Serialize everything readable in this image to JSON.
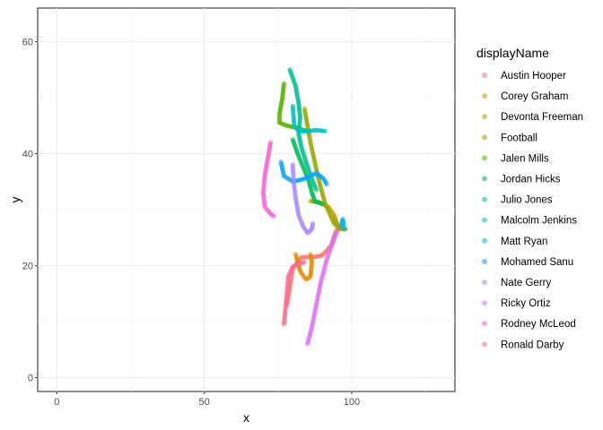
{
  "chart_data": {
    "type": "scatter",
    "xlabel": "x",
    "ylabel": "y",
    "xlim": [
      -6.5,
      135
    ],
    "ylim": [
      -2.5,
      66
    ],
    "x_ticks": [
      0,
      50,
      100
    ],
    "y_ticks": [
      0,
      20,
      40,
      60
    ],
    "x_tick_labels": [
      "0",
      "50",
      "100"
    ],
    "y_tick_labels": [
      "0",
      "20",
      "40",
      "60"
    ],
    "grid": true,
    "legend": {
      "title": "displayName",
      "position": "right"
    },
    "marker": {
      "shape": "circle",
      "alpha": 0.55
    },
    "series": [
      {
        "name": "Austin Hooper",
        "color": "#F8766D",
        "path": [
          [
            78,
            13
          ],
          [
            79,
            16
          ],
          [
            80,
            19.5
          ],
          [
            83,
            21.5
          ],
          [
            87,
            21.5
          ],
          [
            90,
            21.8
          ],
          [
            93,
            23.5
          ],
          [
            94.5,
            26
          ],
          [
            96,
            27
          ]
        ]
      },
      {
        "name": "Corey Graham",
        "color": "#E38900",
        "path": [
          [
            81,
            22
          ],
          [
            82.5,
            19
          ],
          [
            84.5,
            17.5
          ],
          [
            86,
            18
          ],
          [
            86.5,
            20.5
          ],
          [
            86,
            22
          ]
        ]
      },
      {
        "name": "Devonta Freeman",
        "color": "#C49A00",
        "path": [
          [
            86,
            31.5
          ],
          [
            89,
            31.3
          ],
          [
            92,
            30.5
          ],
          [
            94,
            29
          ],
          [
            95,
            27.5
          ],
          [
            96.5,
            26.5
          ],
          [
            98,
            26.5
          ]
        ]
      },
      {
        "name": "Football",
        "color": "#99A800",
        "path": [
          [
            84,
            48
          ],
          [
            86,
            42
          ],
          [
            88.5,
            36
          ],
          [
            91,
            31
          ],
          [
            94,
            27.5
          ],
          [
            96,
            26.5
          ]
        ]
      },
      {
        "name": "Jalen Mills",
        "color": "#53B400",
        "path": [
          [
            77,
            52.5
          ],
          [
            76.5,
            50
          ],
          [
            75.5,
            47
          ],
          [
            75.5,
            45.5
          ],
          [
            78,
            45
          ],
          [
            82,
            44.5
          ],
          [
            85,
            44
          ]
        ]
      },
      {
        "name": "Jordan Hicks",
        "color": "#00BC56",
        "path": [
          [
            80,
            42.5
          ],
          [
            82,
            39.5
          ],
          [
            84,
            37
          ],
          [
            85.5,
            35
          ],
          [
            86.5,
            33
          ],
          [
            87.5,
            31.5
          ],
          [
            90,
            31
          ]
        ]
      },
      {
        "name": "Julio Jones",
        "color": "#00C094",
        "path": [
          [
            79,
            55
          ],
          [
            81,
            52
          ],
          [
            82,
            49
          ],
          [
            82.5,
            46.5
          ],
          [
            82,
            43.5
          ],
          [
            83,
            41
          ],
          [
            84.5,
            38.5
          ],
          [
            86.5,
            35.5
          ],
          [
            88,
            33.5
          ]
        ]
      },
      {
        "name": "Malcolm Jenkins",
        "color": "#00BFC4",
        "path": [
          [
            80,
            48.5
          ],
          [
            80.5,
            45
          ],
          [
            82,
            44
          ],
          [
            85,
            44
          ],
          [
            88,
            44.2
          ],
          [
            91,
            44
          ]
        ]
      },
      {
        "name": "Matt Ryan",
        "color": "#00B6EB",
        "path": [
          [
            96.5,
            27
          ],
          [
            96.7,
            27.8
          ],
          [
            97,
            28.3
          ],
          [
            97.2,
            27.4
          ],
          [
            97.5,
            26.5
          ]
        ]
      },
      {
        "name": "Mohamed Sanu",
        "color": "#06A4FF",
        "path": [
          [
            76,
            38.5
          ],
          [
            77,
            36
          ],
          [
            80,
            35
          ],
          [
            84,
            35.5
          ],
          [
            88,
            36.5
          ],
          [
            90.5,
            35.5
          ],
          [
            91.5,
            34.5
          ]
        ]
      },
      {
        "name": "Nate Gerry",
        "color": "#A58AFF",
        "path": [
          [
            80,
            38
          ],
          [
            80.3,
            35
          ],
          [
            81,
            32
          ],
          [
            82,
            29
          ],
          [
            83.5,
            27
          ],
          [
            85,
            25.8
          ],
          [
            86.5,
            26.5
          ],
          [
            86.8,
            27.5
          ]
        ]
      },
      {
        "name": "Ricky Ortiz",
        "color": "#DF70F8",
        "path": [
          [
            85,
            6
          ],
          [
            86.5,
            9
          ],
          [
            88,
            13
          ],
          [
            89.5,
            17
          ],
          [
            91.5,
            21
          ],
          [
            93.5,
            24
          ],
          [
            95,
            26
          ]
        ]
      },
      {
        "name": "Rodney McLeod",
        "color": "#FB61D7",
        "path": [
          [
            72.5,
            42
          ],
          [
            71.5,
            39
          ],
          [
            70.5,
            36
          ],
          [
            70,
            33
          ],
          [
            70.5,
            30.5
          ],
          [
            72,
            29.5
          ],
          [
            73.5,
            28.8
          ]
        ]
      },
      {
        "name": "Ronald Darby",
        "color": "#FF6C91",
        "path": [
          [
            77,
            9.5
          ],
          [
            77.5,
            12
          ],
          [
            78,
            15
          ],
          [
            78.5,
            18
          ],
          [
            80,
            19.8
          ],
          [
            82,
            20.3
          ],
          [
            84,
            20.6
          ]
        ]
      }
    ]
  }
}
